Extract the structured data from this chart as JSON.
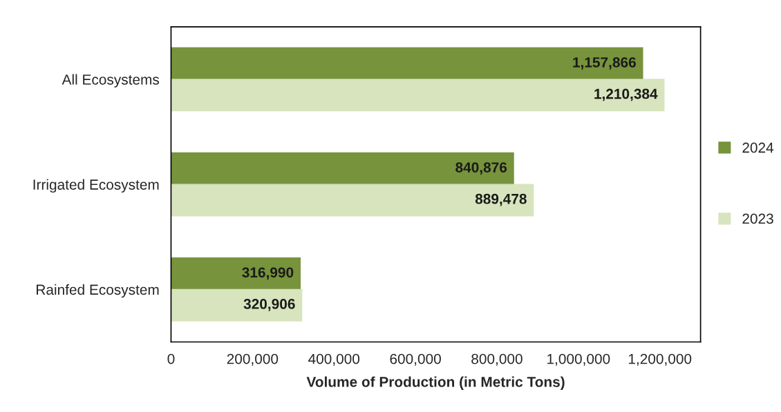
{
  "chart_data": {
    "type": "bar",
    "orientation": "horizontal",
    "xlabel": "Volume of Production (in Metric Tons)",
    "categories": [
      "All Ecosystems",
      "Irrigated Ecosystem",
      "Rainfed Ecosystem"
    ],
    "series": [
      {
        "name": "2024",
        "color": "#77933c",
        "values": [
          1157866,
          840876,
          316990
        ],
        "value_labels": [
          "1,157,866",
          "840,876",
          "316,990"
        ]
      },
      {
        "name": "2023",
        "color": "#d7e4bd",
        "values": [
          1210384,
          889478,
          320906
        ],
        "value_labels": [
          "1,210,384",
          "889,478",
          "320,906"
        ]
      }
    ],
    "xlim": [
      0,
      1300000
    ],
    "xticks": [
      0,
      {
        "value": 200000,
        "label": "200,000"
      },
      {
        "value": 400000,
        "label": "400,000"
      },
      {
        "value": 600000,
        "label": "600,000"
      },
      {
        "value": 800000,
        "label": "800,000"
      },
      {
        "value": 1000000,
        "label": "1,000,000"
      },
      {
        "value": 1200000,
        "label": "1,200,000"
      }
    ],
    "grid": false,
    "legend": "right"
  }
}
